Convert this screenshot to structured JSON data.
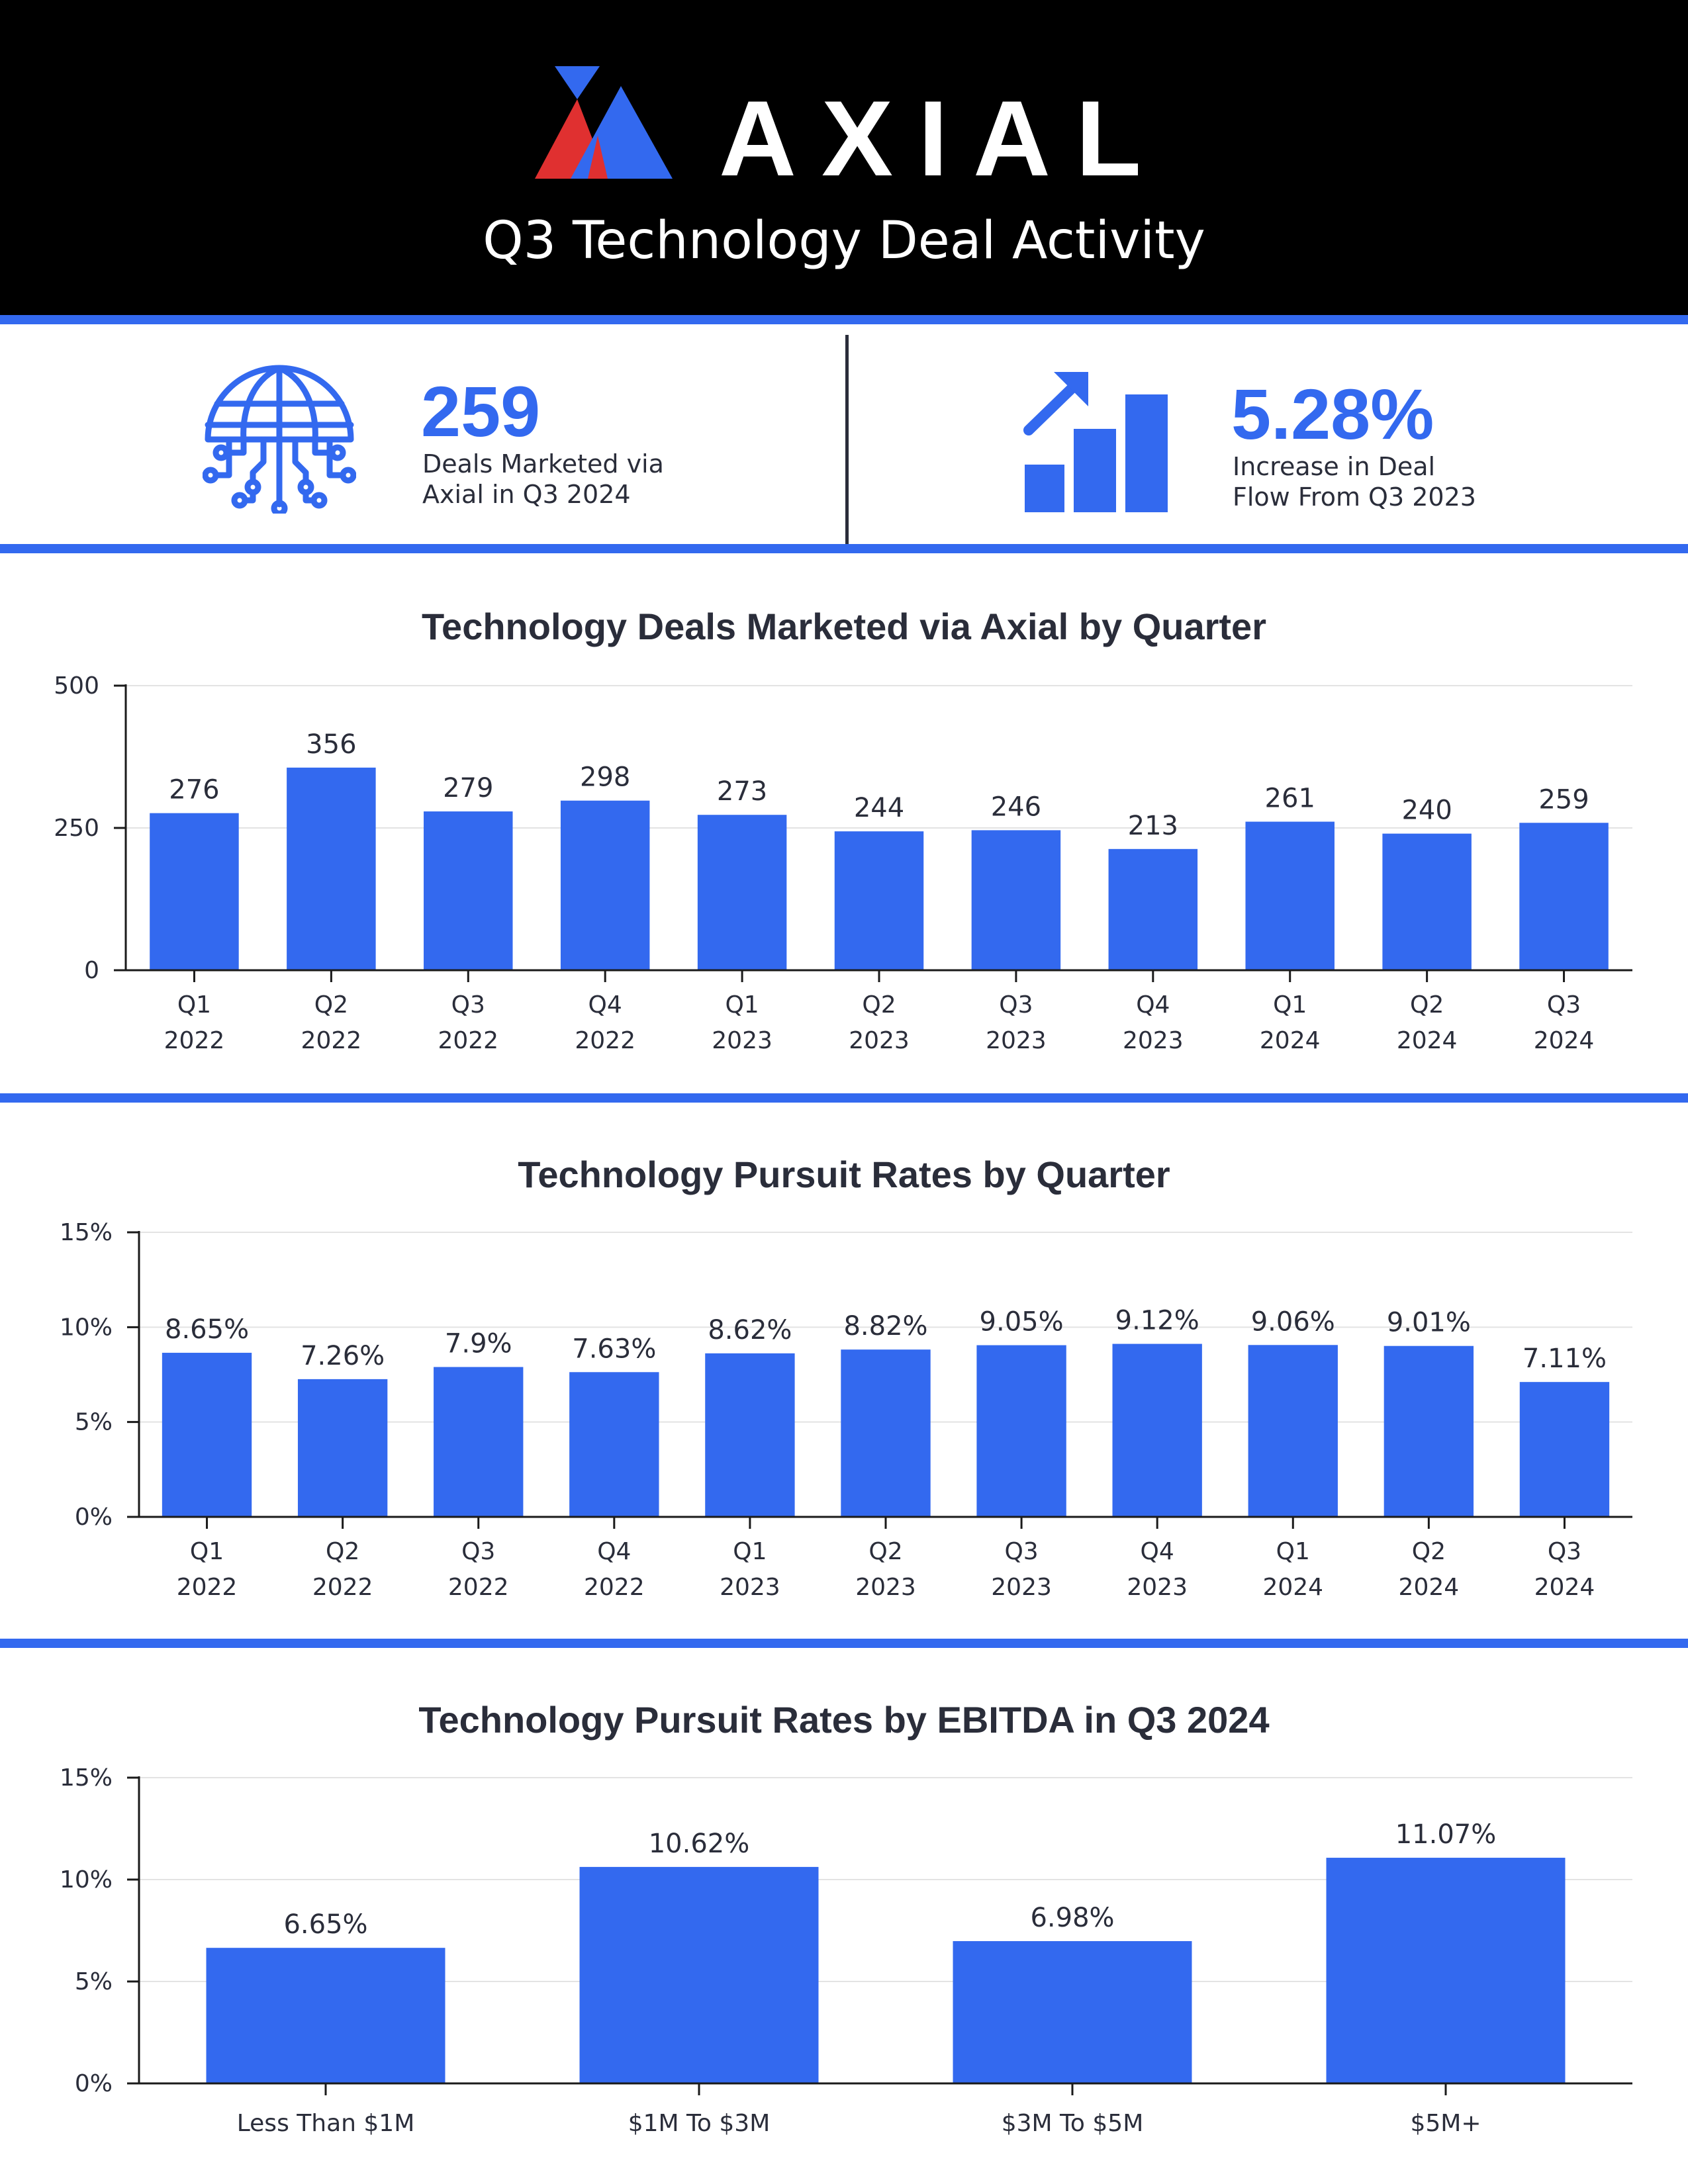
{
  "header": {
    "brand": "AXIAL",
    "title": "Q3 Technology Deal Activity"
  },
  "stats": [
    {
      "value": "259",
      "caption_line1": "Deals Marketed via",
      "caption_line2": "Axial in Q3 2024",
      "icon": "globe-circuit-icon"
    },
    {
      "value": "5.28%",
      "caption_line1": "Increase in Deal",
      "caption_line2": "Flow From Q3 2023",
      "icon": "bar-growth-arrow-icon"
    }
  ],
  "colors": {
    "accent": "#3369ef",
    "logo_red": "#e03030",
    "header_bg": "#000000"
  },
  "chart_data": [
    {
      "type": "bar",
      "title": "Technology Deals Marketed via Axial by Quarter",
      "categories": [
        "Q1 2022",
        "Q2 2022",
        "Q3 2022",
        "Q4 2022",
        "Q1 2023",
        "Q2 2023",
        "Q3 2023",
        "Q4 2023",
        "Q1 2024",
        "Q2 2024",
        "Q3 2024"
      ],
      "values": [
        276,
        356,
        279,
        298,
        273,
        244,
        246,
        213,
        261,
        240,
        259
      ],
      "labels": [
        "276",
        "356",
        "279",
        "298",
        "273",
        "244",
        "246",
        "213",
        "261",
        "240",
        "259"
      ],
      "yticks": [
        "0",
        "250",
        "500"
      ],
      "ylim": [
        0,
        500
      ],
      "grid": true
    },
    {
      "type": "bar",
      "title": "Technology Pursuit Rates by Quarter",
      "categories": [
        "Q1 2022",
        "Q2 2022",
        "Q3 2022",
        "Q4 2022",
        "Q1 2023",
        "Q2 2023",
        "Q3 2023",
        "Q4 2023",
        "Q1 2024",
        "Q2 2024",
        "Q3 2024"
      ],
      "values": [
        8.65,
        7.26,
        7.9,
        7.63,
        8.62,
        8.82,
        9.05,
        9.12,
        9.06,
        9.01,
        7.11
      ],
      "labels": [
        "8.65%",
        "7.26%",
        "7.9%",
        "7.63%",
        "8.62%",
        "8.82%",
        "9.05%",
        "9.12%",
        "9.06%",
        "9.01%",
        "7.11%"
      ],
      "yticks": [
        "0%",
        "5%",
        "10%",
        "15%"
      ],
      "ylim": [
        0,
        15
      ],
      "grid": true
    },
    {
      "type": "bar",
      "title": "Technology Pursuit Rates by EBITDA in Q3 2024",
      "categories": [
        "Less Than $1M",
        "$1M To $3M",
        "$3M To $5M",
        "$5M+"
      ],
      "values": [
        6.65,
        10.62,
        6.98,
        11.07
      ],
      "labels": [
        "6.65%",
        "10.62%",
        "6.98%",
        "11.07%"
      ],
      "yticks": [
        "0%",
        "5%",
        "10%",
        "15%"
      ],
      "ylim": [
        0,
        15
      ],
      "grid": true
    }
  ]
}
